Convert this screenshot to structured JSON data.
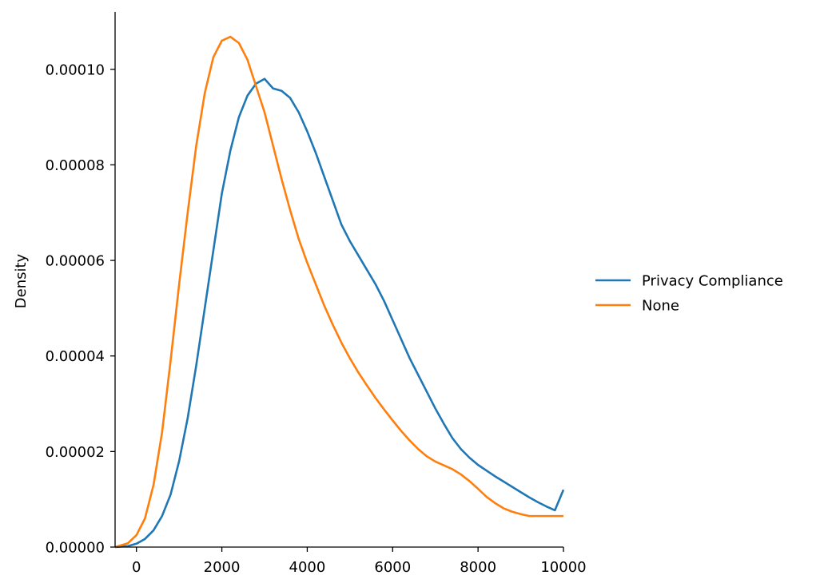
{
  "chart_data": {
    "type": "line",
    "title": "",
    "xlabel": "",
    "ylabel": "Density",
    "xlim": [
      -500,
      10000
    ],
    "ylim": [
      0,
      0.000112
    ],
    "x_ticks": [
      0,
      2000,
      4000,
      6000,
      8000,
      10000
    ],
    "x_tick_labels": [
      "0",
      "2000",
      "4000",
      "6000",
      "8000",
      "10000"
    ],
    "y_ticks": [
      0,
      2e-05,
      4e-05,
      6e-05,
      8e-05,
      0.0001
    ],
    "y_tick_labels": [
      "0.00000",
      "0.00002",
      "0.00004",
      "0.00006",
      "0.00008",
      "0.00010"
    ],
    "grid": false,
    "legend_position": "right",
    "series": [
      {
        "name": "Privacy Compliance",
        "color": "#1f77b4",
        "x": [
          -500,
          -200,
          0,
          200,
          400,
          600,
          800,
          1000,
          1200,
          1400,
          1600,
          1800,
          2000,
          2200,
          2400,
          2600,
          2800,
          3000,
          3200,
          3400,
          3600,
          3800,
          4000,
          4200,
          4400,
          4600,
          4800,
          5000,
          5200,
          5400,
          5600,
          5800,
          6000,
          6200,
          6400,
          6600,
          6800,
          7000,
          7200,
          7400,
          7600,
          7800,
          8000,
          8200,
          8400,
          8600,
          8800,
          9000,
          9200,
          9400,
          9600,
          9800,
          10000
        ],
        "y": [
          0,
          2e-07,
          7e-07,
          1.7e-06,
          3.5e-06,
          6.5e-06,
          1.1e-05,
          1.8e-05,
          2.7e-05,
          3.8e-05,
          5e-05,
          6.2e-05,
          7.4e-05,
          8.3e-05,
          9e-05,
          9.45e-05,
          9.7e-05,
          9.8e-05,
          9.6e-05,
          9.55e-05,
          9.4e-05,
          9.1e-05,
          8.7e-05,
          8.25e-05,
          7.75e-05,
          7.25e-05,
          6.75e-05,
          6.4e-05,
          6.1e-05,
          5.8e-05,
          5.5e-05,
          5.15e-05,
          4.75e-05,
          4.35e-05,
          3.95e-05,
          3.6e-05,
          3.25e-05,
          2.9e-05,
          2.58e-05,
          2.28e-05,
          2.05e-05,
          1.87e-05,
          1.72e-05,
          1.6e-05,
          1.48e-05,
          1.37e-05,
          1.26e-05,
          1.15e-05,
          1.04e-05,
          9.4e-06,
          8.5e-06,
          7.7e-06,
          1.2e-05
        ]
      },
      {
        "name": "None",
        "color": "#ff7f0e",
        "x": [
          -500,
          -200,
          0,
          200,
          400,
          600,
          800,
          1000,
          1200,
          1400,
          1600,
          1800,
          2000,
          2200,
          2400,
          2600,
          2800,
          3000,
          3200,
          3400,
          3600,
          3800,
          4000,
          4200,
          4400,
          4600,
          4800,
          5000,
          5200,
          5400,
          5600,
          5800,
          6000,
          6200,
          6400,
          6600,
          6800,
          7000,
          7200,
          7400,
          7600,
          7800,
          8000,
          8200,
          8400,
          8600,
          8800,
          9000,
          9200,
          9400,
          9600,
          9800,
          10000
        ],
        "y": [
          0,
          8e-07,
          2.5e-06,
          6e-06,
          1.3e-05,
          2.4e-05,
          3.9e-05,
          5.5e-05,
          7e-05,
          8.4e-05,
          9.5e-05,
          0.0001025,
          0.000106,
          0.0001068,
          0.0001055,
          0.000102,
          9.65e-05,
          9.1e-05,
          8.4e-05,
          7.7e-05,
          7.05e-05,
          6.45e-05,
          5.95e-05,
          5.5e-05,
          5.05e-05,
          4.65e-05,
          4.28e-05,
          3.95e-05,
          3.65e-05,
          3.38e-05,
          3.12e-05,
          2.88e-05,
          2.65e-05,
          2.43e-05,
          2.23e-05,
          2.05e-05,
          1.9e-05,
          1.79e-05,
          1.71e-05,
          1.63e-05,
          1.52e-05,
          1.38e-05,
          1.22e-05,
          1.05e-05,
          9.2e-06,
          8.1e-06,
          7.4e-06,
          6.9e-06,
          6.5e-06,
          6.5e-06,
          6.5e-06,
          6.5e-06,
          6.5e-06
        ]
      }
    ]
  }
}
